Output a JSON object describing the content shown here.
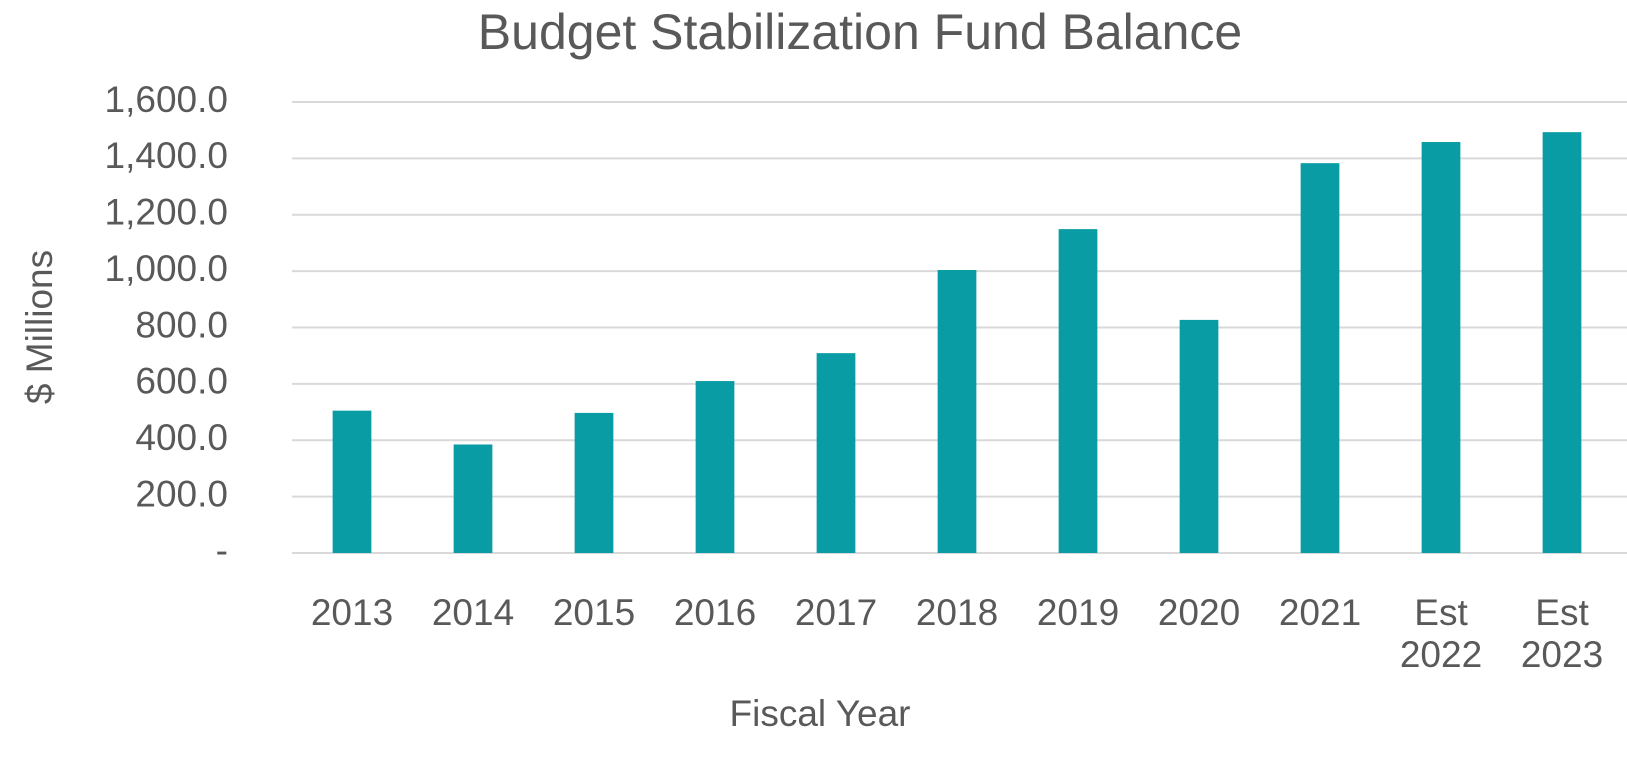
{
  "chart_data": {
    "type": "bar",
    "title": "Budget Stabilization Fund Balance",
    "x_label": "Fiscal Year",
    "y_label": "$ Millions",
    "categories": [
      "2013",
      "2014",
      "2015",
      "2016",
      "2017",
      "2018",
      "2019",
      "2020",
      "2021",
      "Est 2022",
      "Est 2023"
    ],
    "values": [
      505,
      385,
      497,
      610,
      709,
      1004,
      1149,
      827,
      1383,
      1458,
      1493
    ],
    "color": "#099ca4",
    "ylim": [
      0,
      1600
    ],
    "yticks": [
      {
        "value": 0,
        "label": "-"
      },
      {
        "value": 200,
        "label": "200.0"
      },
      {
        "value": 400,
        "label": "400.0"
      },
      {
        "value": 600,
        "label": "600.0"
      },
      {
        "value": 800,
        "label": "800.0"
      },
      {
        "value": 1000,
        "label": "1,000.0"
      },
      {
        "value": 1200,
        "label": "1,200.0"
      },
      {
        "value": 1400,
        "label": "1,400.0"
      },
      {
        "value": 1600,
        "label": "1,600.0"
      }
    ],
    "grid": true
  }
}
